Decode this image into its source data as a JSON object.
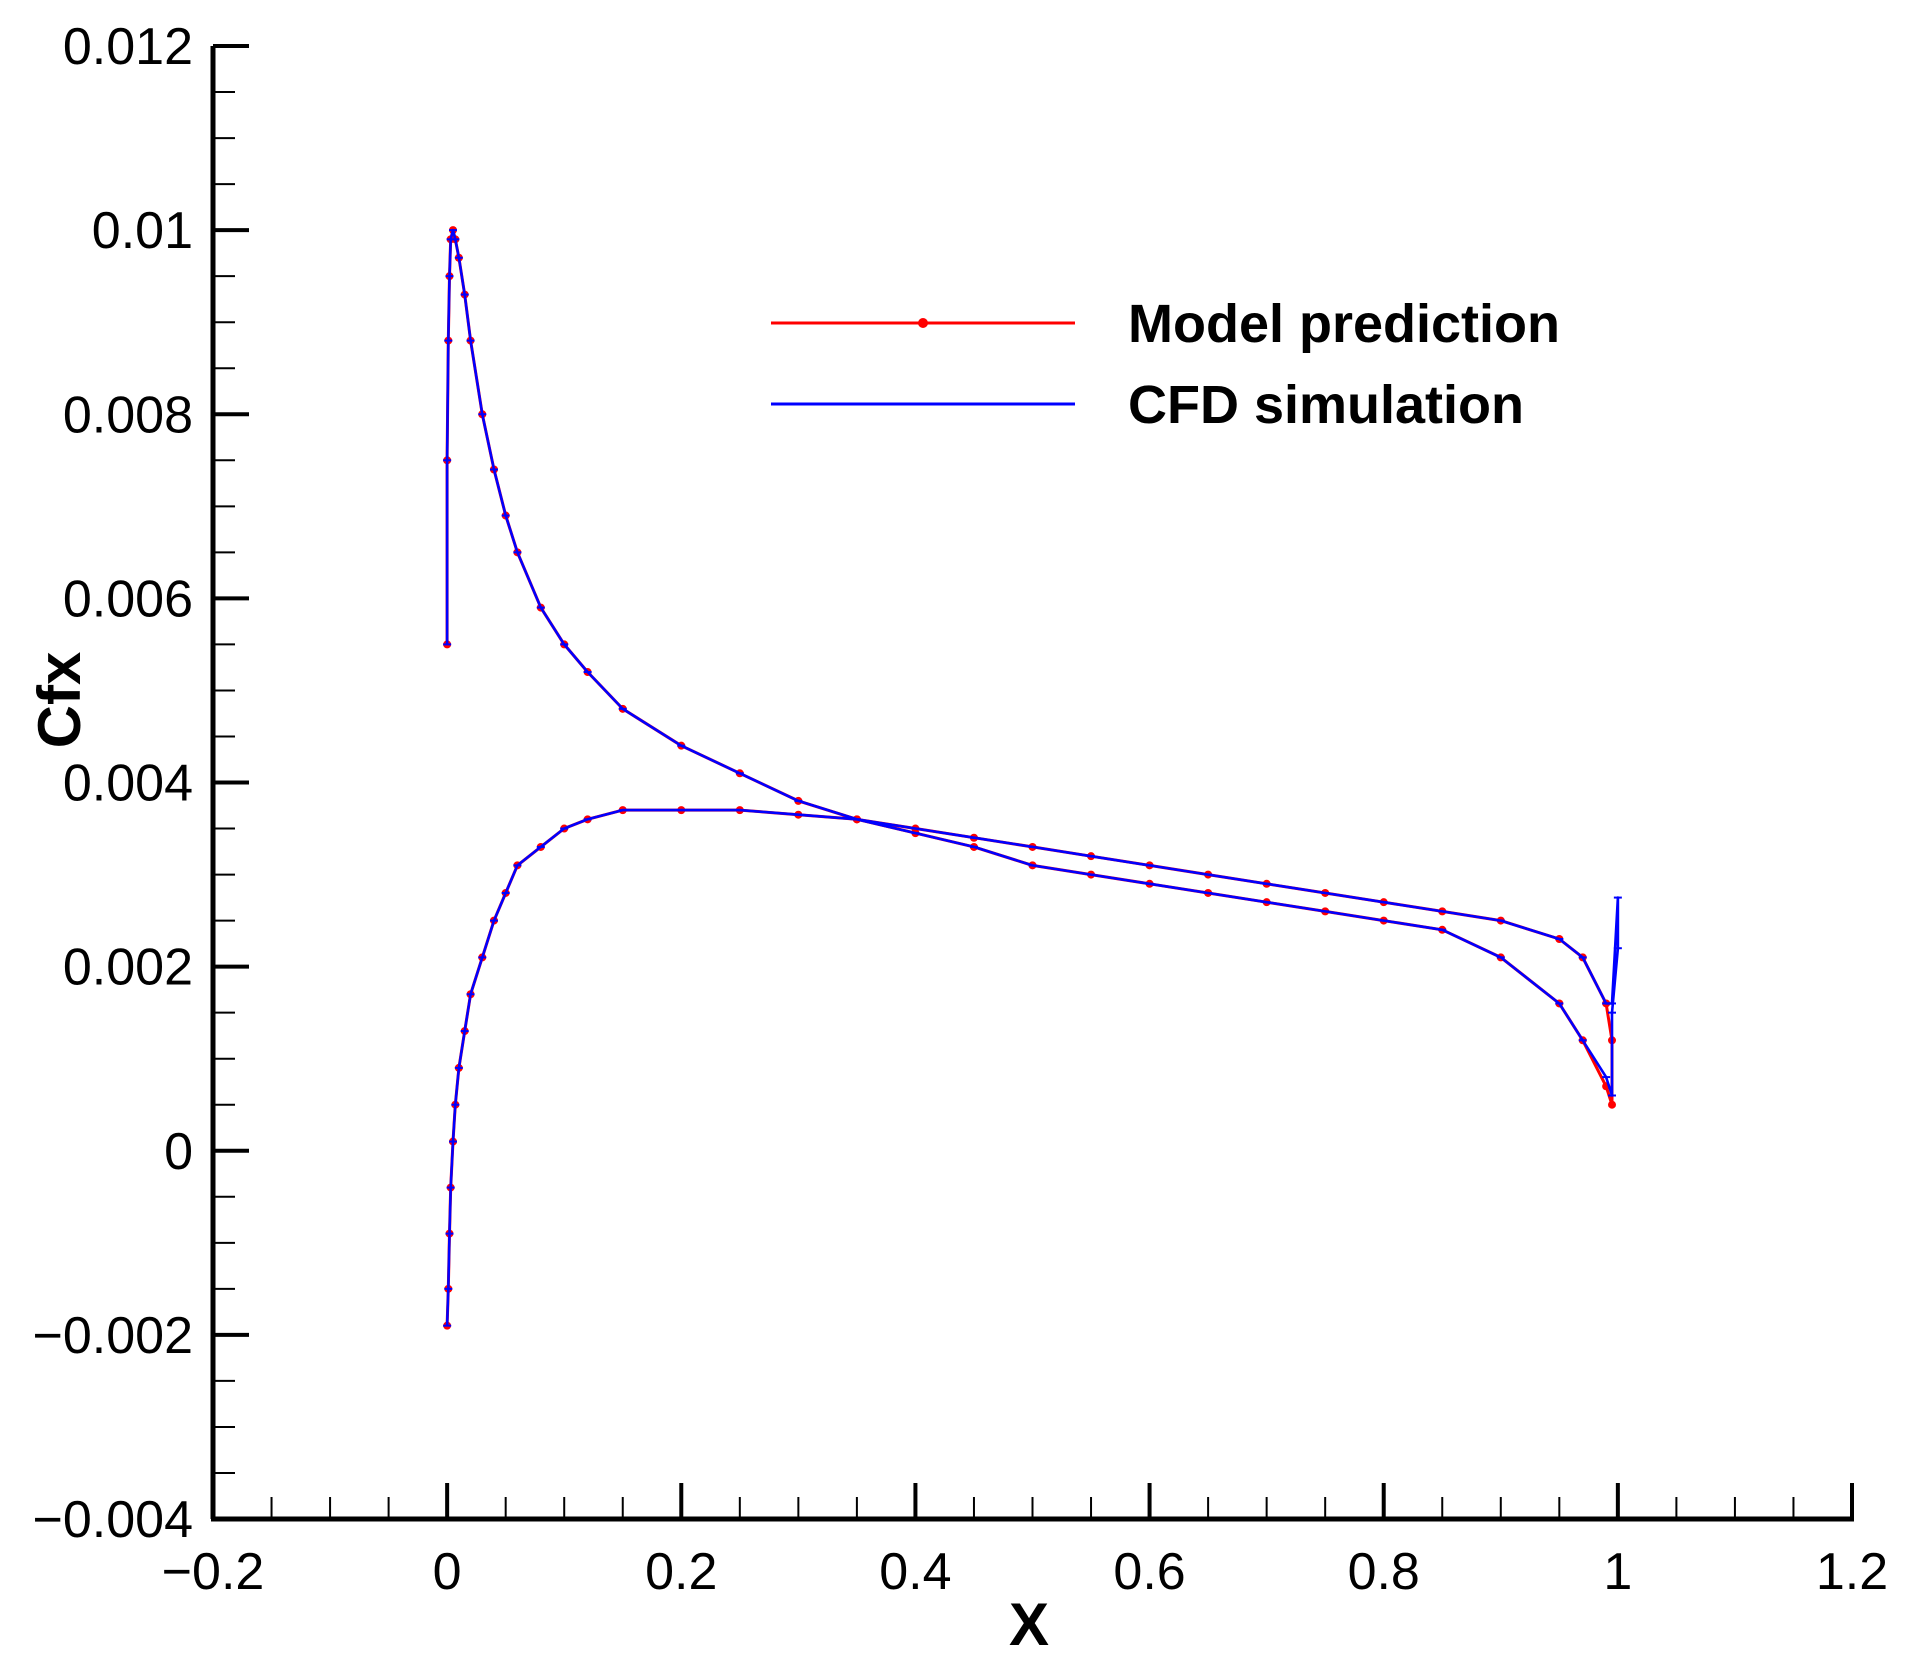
{
  "chart_data": {
    "type": "line",
    "xlabel": "X",
    "ylabel": "Cfx",
    "xlim": [
      -0.2,
      1.2
    ],
    "ylim": [
      -0.004,
      0.012
    ],
    "x_ticks": [
      -0.2,
      0,
      0.2,
      0.4,
      0.6,
      0.8,
      1,
      1.2
    ],
    "x_tick_labels": [
      "−0.2",
      "0",
      "0.2",
      "0.4",
      "0.6",
      "0.8",
      "1",
      "1.2"
    ],
    "y_ticks": [
      -0.004,
      -0.002,
      0,
      0.002,
      0.004,
      0.006,
      0.008,
      0.01,
      0.012
    ],
    "y_tick_labels": [
      "−0.004",
      "−0.002",
      "0",
      "0.002",
      "0.004",
      "0.006",
      "0.008",
      "0.01",
      "0.012"
    ],
    "grid": false,
    "legend_position": "top-right",
    "series": [
      {
        "name": "Model prediction",
        "color": "#ff0000",
        "marker": "dot",
        "x": [
          0.0,
          0.0,
          0.001,
          0.002,
          0.003,
          0.005,
          0.007,
          0.01,
          0.015,
          0.02,
          0.03,
          0.04,
          0.05,
          0.06,
          0.08,
          0.1,
          0.12,
          0.15,
          0.2,
          0.25,
          0.3,
          0.35,
          0.4,
          0.45,
          0.5,
          0.55,
          0.6,
          0.65,
          0.7,
          0.75,
          0.8,
          0.85,
          0.9,
          0.95,
          0.97,
          0.99,
          0.995,
          0.995,
          0.99,
          0.97,
          0.95,
          0.9,
          0.85,
          0.8,
          0.75,
          0.7,
          0.65,
          0.6,
          0.55,
          0.5,
          0.45,
          0.4,
          0.35,
          0.3,
          0.25,
          0.2,
          0.15,
          0.12,
          0.1,
          0.08,
          0.06,
          0.05,
          0.04,
          0.03,
          0.02,
          0.015,
          0.01,
          0.007,
          0.005,
          0.003,
          0.002,
          0.001,
          0.0
        ],
        "y": [
          0.0055,
          0.0075,
          0.0088,
          0.0095,
          0.0099,
          0.01,
          0.0099,
          0.0097,
          0.0093,
          0.0088,
          0.008,
          0.0074,
          0.0069,
          0.0065,
          0.0059,
          0.0055,
          0.0052,
          0.0048,
          0.0044,
          0.0041,
          0.0038,
          0.0036,
          0.00345,
          0.0033,
          0.0031,
          0.003,
          0.0029,
          0.0028,
          0.0027,
          0.0026,
          0.0025,
          0.0024,
          0.0021,
          0.0016,
          0.0012,
          0.0007,
          0.0005,
          0.0012,
          0.0016,
          0.0021,
          0.0023,
          0.0025,
          0.0026,
          0.0027,
          0.0028,
          0.0029,
          0.003,
          0.0031,
          0.0032,
          0.0033,
          0.0034,
          0.0035,
          0.0036,
          0.00365,
          0.0037,
          0.0037,
          0.0037,
          0.0036,
          0.0035,
          0.0033,
          0.0031,
          0.0028,
          0.0025,
          0.0021,
          0.0017,
          0.0013,
          0.0009,
          0.0005,
          0.0001,
          -0.0004,
          -0.0009,
          -0.0015,
          -0.0019
        ]
      },
      {
        "name": "CFD simulation",
        "color": "#0000ff",
        "marker": "tick",
        "x": [
          0.0,
          0.0,
          0.001,
          0.002,
          0.003,
          0.005,
          0.007,
          0.01,
          0.015,
          0.02,
          0.03,
          0.04,
          0.05,
          0.06,
          0.08,
          0.1,
          0.12,
          0.15,
          0.2,
          0.25,
          0.3,
          0.35,
          0.4,
          0.45,
          0.5,
          0.55,
          0.6,
          0.65,
          0.7,
          0.75,
          0.8,
          0.85,
          0.9,
          0.95,
          0.97,
          0.99,
          0.995,
          0.995,
          1.0,
          1.0,
          0.995,
          0.99,
          0.97,
          0.95,
          0.9,
          0.85,
          0.8,
          0.75,
          0.7,
          0.65,
          0.6,
          0.55,
          0.5,
          0.45,
          0.4,
          0.35,
          0.3,
          0.25,
          0.2,
          0.15,
          0.12,
          0.1,
          0.08,
          0.06,
          0.05,
          0.04,
          0.03,
          0.02,
          0.015,
          0.01,
          0.007,
          0.005,
          0.003,
          0.002,
          0.001,
          0.0
        ],
        "y": [
          0.0055,
          0.0075,
          0.0088,
          0.0095,
          0.0099,
          0.01,
          0.0099,
          0.0097,
          0.0093,
          0.0088,
          0.008,
          0.0074,
          0.0069,
          0.0065,
          0.0059,
          0.0055,
          0.0052,
          0.0048,
          0.0044,
          0.0041,
          0.0038,
          0.0036,
          0.00345,
          0.0033,
          0.0031,
          0.003,
          0.0029,
          0.0028,
          0.0027,
          0.0026,
          0.0025,
          0.0024,
          0.0021,
          0.0016,
          0.0012,
          0.0008,
          0.0006,
          0.0015,
          0.0022,
          0.00275,
          0.0016,
          0.0016,
          0.0021,
          0.0023,
          0.0025,
          0.0026,
          0.0027,
          0.0028,
          0.0029,
          0.003,
          0.0031,
          0.0032,
          0.0033,
          0.0034,
          0.0035,
          0.0036,
          0.00365,
          0.0037,
          0.0037,
          0.0037,
          0.0036,
          0.0035,
          0.0033,
          0.0031,
          0.0028,
          0.0025,
          0.0021,
          0.0017,
          0.0013,
          0.0009,
          0.0005,
          0.0001,
          -0.0004,
          -0.0009,
          -0.0015,
          -0.0019
        ]
      }
    ]
  }
}
